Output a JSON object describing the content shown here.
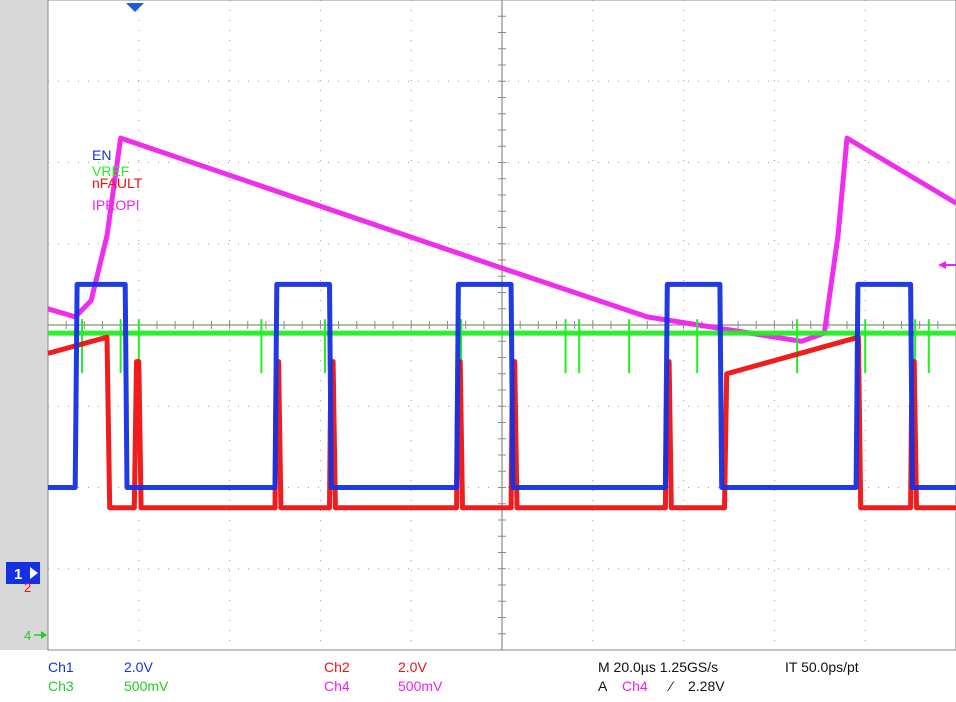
{
  "chart_data": {
    "type": "line",
    "x_unit": "µs",
    "x_per_div": 20,
    "x_divisions": 10,
    "xlim": [
      0,
      200
    ],
    "y_divisions": 8,
    "grid": true,
    "legend": [
      "EN",
      "VREF",
      "nFAULT",
      "IPROPI"
    ],
    "series": [
      {
        "name": "EN",
        "channel": "Ch1",
        "scale": "2.0V",
        "color": "#1530e0",
        "x": [
          0,
          6,
          6.4,
          17,
          17.4,
          50,
          50.4,
          62,
          62.4,
          90,
          90.4,
          102,
          102.4,
          136,
          136.4,
          148,
          148.4,
          178,
          178.4,
          190,
          190.4,
          200
        ],
        "y": [
          0,
          0,
          5,
          5,
          0,
          0,
          5,
          5,
          0,
          0,
          5,
          5,
          0,
          0,
          5,
          5,
          0,
          0,
          5,
          5,
          0,
          0
        ]
      },
      {
        "name": "nFAULT",
        "channel": "Ch2",
        "scale": "2.0V",
        "color": "#ee1111",
        "x": [
          0,
          13,
          13.6,
          19,
          19.5,
          20,
          20.5,
          50,
          50.2,
          50.8,
          51.3,
          62,
          62.2,
          62.8,
          63.3,
          90,
          90.2,
          90.8,
          91.3,
          102,
          102.2,
          102.8,
          103.3,
          136,
          136.2,
          136.8,
          137.3,
          149,
          149.5,
          178.5,
          179,
          190,
          190.2,
          190.8,
          191.3,
          200
        ],
        "y": [
          3.8,
          4.2,
          0,
          0,
          3.6,
          3.6,
          0,
          0,
          2.4,
          3.6,
          0,
          0,
          2.4,
          3.6,
          0,
          0,
          2.4,
          3.6,
          0,
          0,
          2.4,
          3.6,
          0,
          0,
          2.4,
          3.6,
          0,
          0,
          3.3,
          4.2,
          0,
          0,
          2.4,
          3.6,
          0,
          0
        ]
      },
      {
        "name": "VREF",
        "channel": "Ch3",
        "scale": "500mV",
        "color": "#22ee22",
        "x": [
          0,
          200
        ],
        "y": [
          1.5,
          1.5
        ]
      },
      {
        "name": "IPROPI",
        "channel": "Ch4",
        "scale": "500mV",
        "color": "#ee22ee",
        "x": [
          0,
          6,
          9.5,
          13,
          16,
          100,
          132,
          166,
          171,
          174,
          176,
          200
        ],
        "y": [
          1.65,
          1.6,
          1.7,
          2.1,
          2.7,
          1.9,
          1.6,
          1.45,
          1.5,
          2.1,
          2.7,
          2.3
        ]
      }
    ],
    "spikes_x": [
      6.5,
      7.5,
      16,
      20,
      47,
      61,
      91,
      114,
      117,
      128,
      143,
      165,
      180,
      191,
      194
    ]
  },
  "markers": {
    "ch1": {
      "label": "1",
      "color": "#1530e0",
      "level_div": -2.0
    },
    "ch2": {
      "label": "2",
      "color": "#ee1111",
      "level_div": -2.25
    },
    "ch4": {
      "label": "4",
      "color": "#22cc22",
      "level_div": -3.1
    }
  },
  "trigger_position_x": 20,
  "status": {
    "ch1": {
      "label": "Ch1",
      "value": "2.0V",
      "color": "#1530e0"
    },
    "ch2": {
      "label": "Ch2",
      "value": "2.0V",
      "color": "#ee1111"
    },
    "ch3": {
      "label": "Ch3",
      "value": "500mV",
      "color": "#22cc22"
    },
    "ch4": {
      "label": "Ch4",
      "value": "500mV",
      "color": "#ee22ee"
    },
    "timebase": "M 20.0µs 1.25GS/s",
    "interp": "IT 50.0ps/pt",
    "trigger_prefix": "A",
    "trigger_source": "Ch4",
    "trigger_slope": "⁄",
    "trigger_level": "2.28V"
  }
}
